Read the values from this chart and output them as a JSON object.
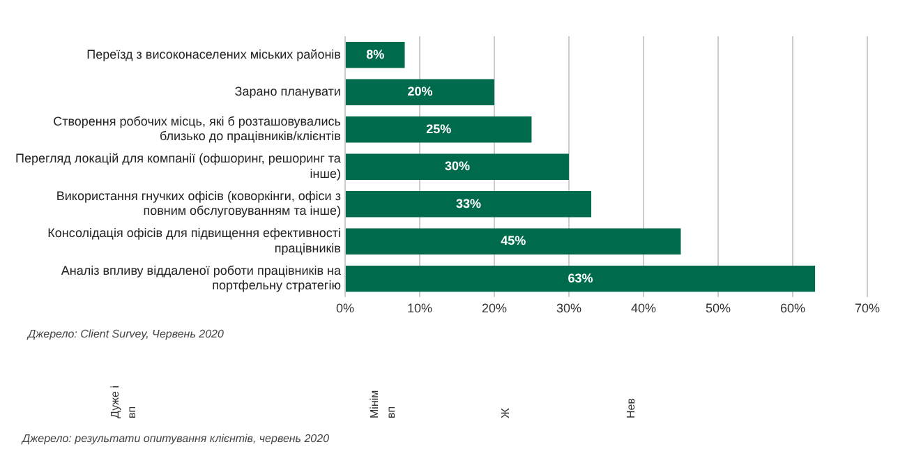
{
  "chart_data": {
    "type": "bar",
    "orientation": "horizontal",
    "categories": [
      "Переїзд з високонаселених міських районів",
      "Зарано планувати",
      "Створення робочих місць, які б розташовувались близько до працівників/клієнтів",
      "Перегляд локацій для компанії (офшоринг, решоринг та інше)",
      "Використання гнучких офісів (коворкінги, офіси з повним обслуговуванням та інше)",
      "Консолідація офісів для підвищення ефективності працівників",
      "Аналіз впливу віддаленої роботи працівників на портфельну стратегію"
    ],
    "values": [
      8,
      20,
      25,
      30,
      33,
      45,
      63
    ],
    "value_labels": [
      "8%",
      "20%",
      "25%",
      "30%",
      "33%",
      "45%",
      "63%"
    ],
    "color": "#006a4d",
    "xlim": [
      0,
      70
    ],
    "xticks": [
      {
        "value": 0,
        "label": "0%"
      },
      {
        "value": 10,
        "label": "10%"
      },
      {
        "value": 20,
        "label": "20%"
      },
      {
        "value": 30,
        "label": "30%"
      },
      {
        "value": 40,
        "label": "40%"
      },
      {
        "value": 50,
        "label": "50%"
      },
      {
        "value": 60,
        "label": "60%"
      },
      {
        "value": 70,
        "label": "70%"
      }
    ],
    "grid": "x",
    "legend": false,
    "annotations": [
      "Джерело: Client Survey, Червень 2020",
      "Дуже і",
      "вп",
      "Мінім",
      "вп",
      "Ж",
      "Нев",
      "Джерело: результати опитування клієнтів, червень 2020"
    ]
  }
}
